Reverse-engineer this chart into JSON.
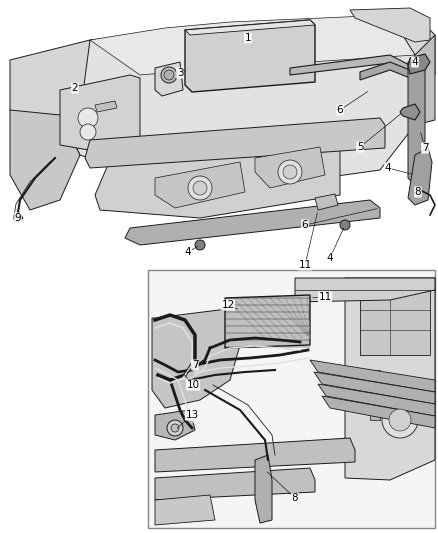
{
  "background_color": "#f0f0f0",
  "line_color": "#1a1a1a",
  "fill_light": "#e8e8e8",
  "fill_mid": "#d0d0d0",
  "fill_dark": "#a0a0a0",
  "figsize": [
    4.38,
    5.33
  ],
  "dpi": 100,
  "top_labels": [
    [
      "1",
      248,
      38
    ],
    [
      "2",
      75,
      88
    ],
    [
      "3",
      180,
      73
    ],
    [
      "4",
      415,
      62
    ],
    [
      "4",
      388,
      168
    ],
    [
      "4",
      188,
      252
    ],
    [
      "4",
      330,
      258
    ],
    [
      "5",
      360,
      147
    ],
    [
      "6",
      340,
      110
    ],
    [
      "6",
      305,
      225
    ],
    [
      "7",
      425,
      148
    ],
    [
      "8",
      418,
      192
    ],
    [
      "9",
      18,
      218
    ],
    [
      "11",
      305,
      265
    ]
  ],
  "bottom_labels": [
    [
      "7",
      195,
      365
    ],
    [
      "8",
      295,
      498
    ],
    [
      "10",
      193,
      385
    ],
    [
      "11",
      325,
      297
    ],
    [
      "12",
      228,
      305
    ],
    [
      "13",
      192,
      415
    ]
  ]
}
